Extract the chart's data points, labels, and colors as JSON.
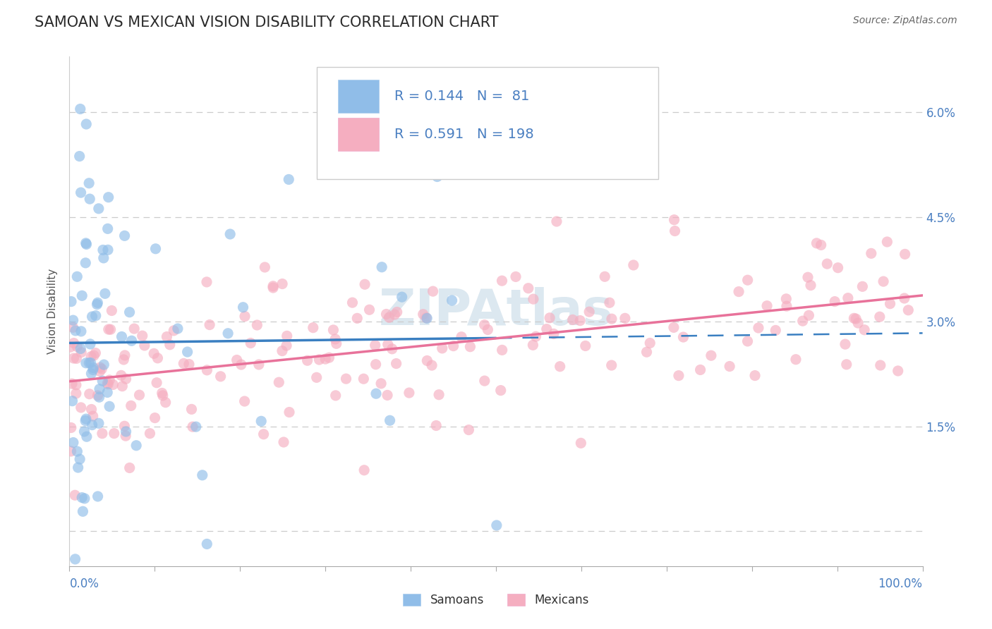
{
  "title": "SAMOAN VS MEXICAN VISION DISABILITY CORRELATION CHART",
  "source": "Source: ZipAtlas.com",
  "ylabel": "Vision Disability",
  "xlim": [
    0.0,
    1.0
  ],
  "ylim": [
    -0.005,
    0.068
  ],
  "yticks": [
    0.0,
    0.015,
    0.03,
    0.045,
    0.06
  ],
  "ytick_labels": [
    "",
    "1.5%",
    "3.0%",
    "4.5%",
    "6.0%"
  ],
  "samoan_R": 0.144,
  "samoan_N": 81,
  "mexican_R": 0.591,
  "mexican_N": 198,
  "samoan_color": "#90bde8",
  "mexican_color": "#f5aec0",
  "samoan_line_color": "#3a7fc1",
  "mexican_line_color": "#e8729a",
  "dash_color": "#8aafd8",
  "background_color": "#ffffff",
  "grid_color": "#cccccc",
  "title_color": "#2a2a2a",
  "source_color": "#666666",
  "legend_text_color_blue": "#4a7fc1",
  "watermark_color": "#dce8f0",
  "title_fontsize": 15,
  "axis_label_fontsize": 11,
  "tick_fontsize": 12,
  "legend_fontsize": 14,
  "source_fontsize": 10
}
